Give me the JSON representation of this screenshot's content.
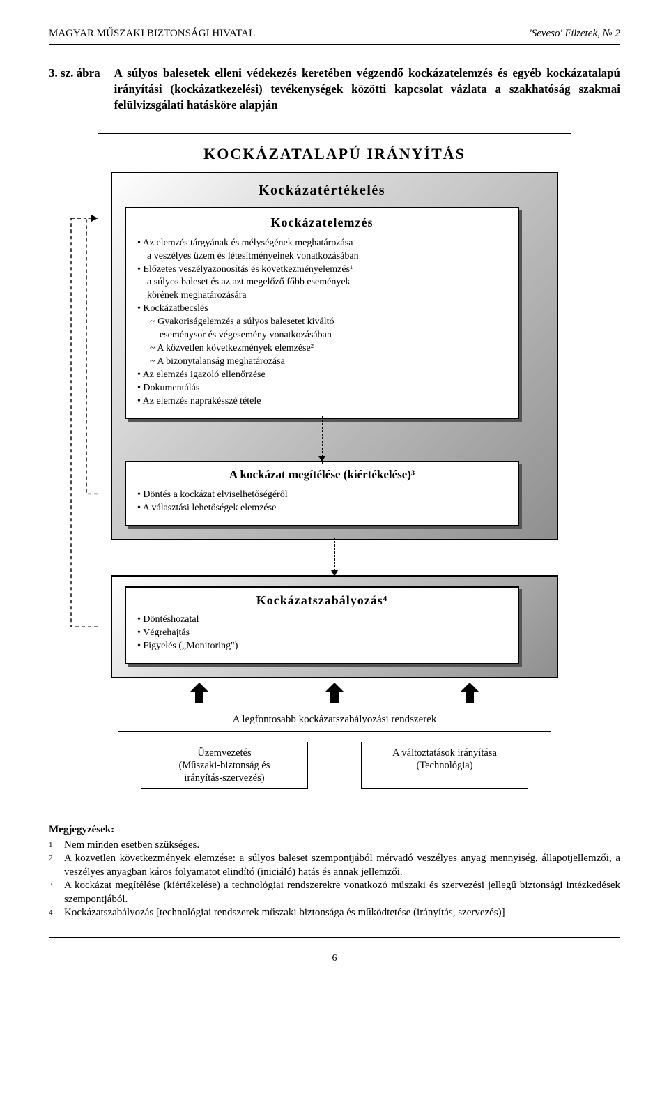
{
  "header": {
    "left": "MAGYAR MŰSZAKI BIZTONSÁGI HIVATAL",
    "right": "'Seveso' Füzetek, № 2"
  },
  "intro": {
    "label": "3. sz. ábra",
    "text": "A súlyos balesetek elleni védekezés keretében végzendő kockázatelemzés és egyéb kockázatalapú irányítási (kockázatkezelési) tevékenységek közötti kapcsolat vázlata a szakhatóság szakmai felülvizsgálati hatásköre alapján"
  },
  "diagram": {
    "outer_title": "KOCKÁZATALAPÚ IRÁNYÍTÁS",
    "evaluation_title": "Kockázatértékelés",
    "analysis_title": "Kockázatelemzés",
    "analysis_items": [
      {
        "t": "b1",
        "v": "Az elemzés tárgyának és mélységének meghatározása"
      },
      {
        "t": "b1-cont",
        "v": "a veszélyes üzem és létesítményeinek vonatkozásában"
      },
      {
        "t": "b1",
        "v": "Előzetes veszélyazonosítás és következményelemzés¹"
      },
      {
        "t": "b1-cont",
        "v": "a súlyos baleset és az azt megelőző főbb események"
      },
      {
        "t": "b1-cont",
        "v": "körének meghatározására"
      },
      {
        "t": "b1",
        "v": "Kockázatbecslés"
      },
      {
        "t": "b2",
        "v": "Gyakoriságelemzés a súlyos balesetet kiváltó"
      },
      {
        "t": "b2-cont",
        "v": "eseménysor és végesemény vonatkozásában"
      },
      {
        "t": "b2",
        "v": "A közvetlen következmények elemzése²"
      },
      {
        "t": "b2",
        "v": "A bizonytalanság meghatározása"
      },
      {
        "t": "b1",
        "v": "Az elemzés igazoló ellenőrzése"
      },
      {
        "t": "b1",
        "v": "Dokumentálás"
      },
      {
        "t": "b1",
        "v": "Az elemzés naprakésszé tétele"
      }
    ],
    "decision_title": "A kockázat megítélése (kiértékelése)³",
    "decision_items": [
      {
        "t": "b1",
        "v": "Döntés a kockázat elviselhetőségéről"
      },
      {
        "t": "b1",
        "v": "A választási lehetőségek elemzése"
      }
    ],
    "control_title": "Kockázatszabályozás⁴",
    "control_items": [
      {
        "t": "b1",
        "v": "Döntéshozatal"
      },
      {
        "t": "b1",
        "v": "Végrehajtás"
      },
      {
        "t": "b1",
        "v": "Figyelés („Monitoring\")"
      }
    ],
    "control_systems": "A legfontosabb kockázatszabályozási rendszerek",
    "box_left": "Üzemvezetés\n(Műszaki-biztonság és\nirányítás-szervezés)",
    "box_right": "A változtatások irányítása\n(Technológia)"
  },
  "notes": {
    "title": "Megjegyzések:",
    "items": [
      {
        "sup": "1",
        "text": "Nem minden esetben szükséges."
      },
      {
        "sup": "2",
        "text": "A közvetlen következmények elemzése: a súlyos baleset szempontjából mérvadó veszélyes anyag mennyiség, állapotjellemzői, a veszélyes anyagban káros folyamatot elindító (iniciáló) hatás és annak jellemzői."
      },
      {
        "sup": "3",
        "text": "A kockázat megítélése (kiértékelése) a technológiai rendszerekre vonatkozó műszaki és szervezési jellegű biztonsági intézkedések szempontjából."
      },
      {
        "sup": "4",
        "text": "Kockázatszabályozás [technológiai rendszerek műszaki biztonsága és működtetése (irányítás, szervezés)]"
      }
    ]
  },
  "page_number": "6"
}
